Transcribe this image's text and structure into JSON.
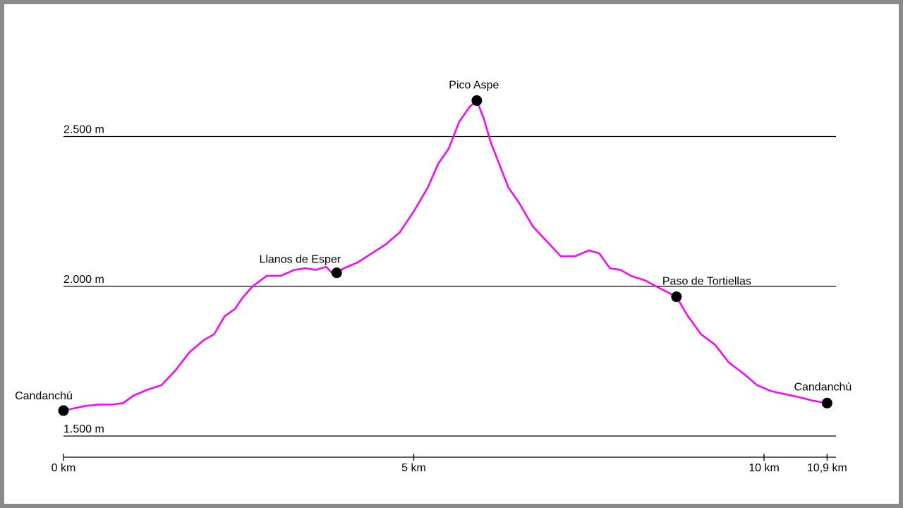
{
  "colors": {
    "profile": "#ff00ff",
    "grid": "#000000",
    "points": "#000000",
    "frame": "#8a8a8a"
  },
  "chart_data": {
    "type": "line",
    "title": "",
    "xlabel": "",
    "ylabel": "",
    "xlim": [
      0,
      11.0
    ],
    "ylim": [
      1420,
      2750
    ],
    "grid": "horizontal",
    "y_gridlines": [
      {
        "value": 1500,
        "label": "1.500 m"
      },
      {
        "value": 2000,
        "label": "2.000 m"
      },
      {
        "value": 2500,
        "label": "2.500 m"
      }
    ],
    "x_ticks": [
      {
        "value": 0,
        "label": "0 km"
      },
      {
        "value": 5,
        "label": "5 km"
      },
      {
        "value": 10,
        "label": "10 km"
      },
      {
        "value": 10.9,
        "label": "10,9 km"
      }
    ],
    "series": [
      {
        "x": [
          0.0,
          0.1,
          0.3,
          0.5,
          0.7,
          0.85,
          1.0,
          1.2,
          1.4,
          1.6,
          1.8,
          2.0,
          2.15,
          2.3,
          2.45,
          2.55,
          2.7,
          2.9,
          3.1,
          3.3,
          3.45,
          3.6,
          3.75,
          3.85,
          3.9,
          4.0,
          4.2,
          4.4,
          4.6,
          4.8,
          5.0,
          5.2,
          5.35,
          5.5,
          5.65,
          5.8,
          5.9,
          6.0,
          6.1,
          6.2,
          6.35,
          6.5,
          6.7,
          6.9,
          7.1,
          7.3,
          7.5,
          7.65,
          7.8,
          7.95,
          8.1,
          8.3,
          8.5,
          8.75,
          8.9,
          9.1,
          9.3,
          9.5,
          9.7,
          9.9,
          10.1,
          10.3,
          10.5,
          10.7,
          10.9
        ],
        "y": [
          1585,
          1590,
          1600,
          1605,
          1605,
          1610,
          1635,
          1655,
          1670,
          1720,
          1780,
          1820,
          1840,
          1900,
          1925,
          1960,
          2000,
          2035,
          2035,
          2055,
          2060,
          2055,
          2065,
          2040,
          2045,
          2060,
          2080,
          2110,
          2140,
          2180,
          2250,
          2330,
          2410,
          2460,
          2550,
          2600,
          2620,
          2560,
          2480,
          2420,
          2330,
          2280,
          2200,
          2150,
          2100,
          2100,
          2120,
          2110,
          2060,
          2055,
          2035,
          2020,
          1995,
          1965,
          1905,
          1840,
          1805,
          1745,
          1710,
          1670,
          1650,
          1640,
          1630,
          1618,
          1610
        ]
      }
    ],
    "points": [
      {
        "name": "Candanchú",
        "x": 0.0,
        "y": 1585
      },
      {
        "name": "Llanos de Esper",
        "x": 3.9,
        "y": 2045
      },
      {
        "name": "Pico Aspe",
        "x": 5.9,
        "y": 2620
      },
      {
        "name": "Paso de Tortiellas",
        "x": 8.75,
        "y": 1965
      },
      {
        "name": "Candanchú",
        "x": 10.9,
        "y": 1610
      }
    ]
  }
}
